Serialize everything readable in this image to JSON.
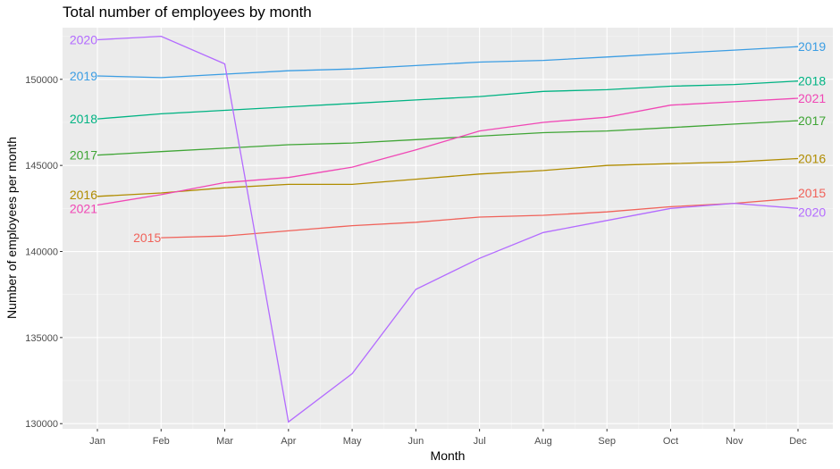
{
  "chart_data": {
    "type": "line",
    "title": "Total number of employees by month",
    "xlabel": "Month",
    "ylabel": "Number of employees per month",
    "categories": [
      "Jan",
      "Feb",
      "Mar",
      "Apr",
      "May",
      "Jun",
      "Jul",
      "Aug",
      "Sep",
      "Oct",
      "Nov",
      "Dec"
    ],
    "y_ticks": [
      130000,
      135000,
      140000,
      145000,
      150000
    ],
    "ylim": [
      129700,
      153000
    ],
    "grid": true,
    "legend": "direct labels at line ends",
    "series": [
      {
        "name": "2015",
        "color": "#F8766D",
        "start_index": 1,
        "values": [
          null,
          140800,
          140900,
          141200,
          141500,
          141700,
          142000,
          142100,
          142300,
          142600,
          142800,
          143100
        ]
      },
      {
        "name": "2016",
        "color": "#B79F00",
        "values": [
          143200,
          143400,
          143700,
          143900,
          143900,
          144200,
          144500,
          144700,
          145000,
          145100,
          145200,
          145400
        ]
      },
      {
        "name": "2017",
        "color": "#00BA38",
        "values": [
          145600,
          145800,
          146000,
          146200,
          146300,
          146500,
          146700,
          146900,
          147000,
          147200,
          147400,
          147600
        ]
      },
      {
        "name": "2018",
        "color": "#00BFC4",
        "values": [
          147700,
          148000,
          148200,
          148400,
          148600,
          148800,
          149000,
          149300,
          149400,
          149600,
          149700,
          149900
        ]
      },
      {
        "name": "2019",
        "color": "#619CFF",
        "values": [
          150200,
          150100,
          150300,
          150500,
          150600,
          150800,
          151000,
          151100,
          151300,
          151500,
          151700,
          151900
        ]
      },
      {
        "name": "2020",
        "color": "#F564E3",
        "values": [
          152300,
          152500,
          150900,
          130100,
          132900,
          137800,
          139600,
          141100,
          141800,
          142500,
          142800,
          142500
        ]
      },
      {
        "name": "2021",
        "color": "#E76BF3",
        "values": [
          142700,
          143300,
          144000,
          144300,
          144900,
          145900,
          147000,
          147500,
          147800,
          148500,
          148700,
          148900
        ]
      }
    ]
  }
}
